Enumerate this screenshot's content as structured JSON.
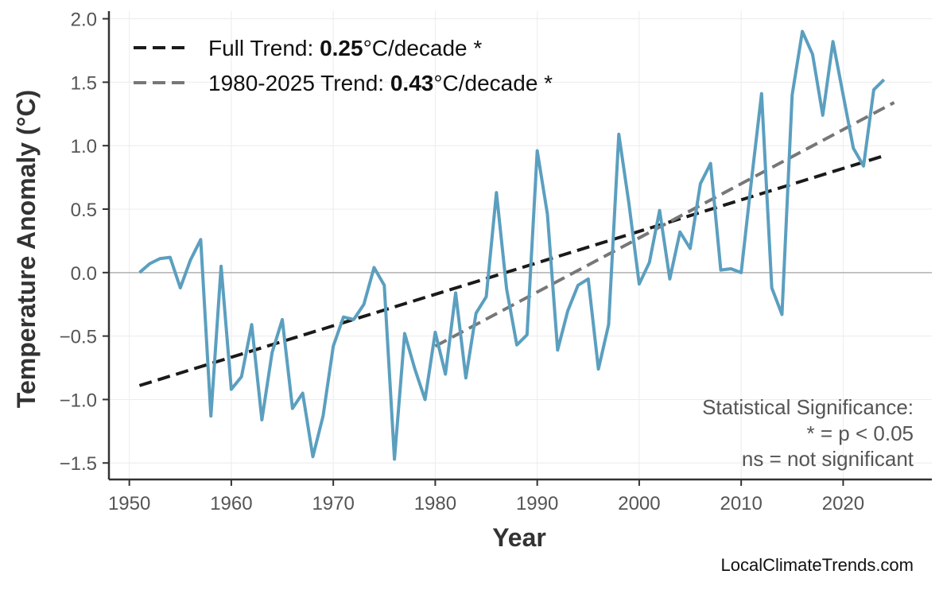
{
  "chart_data": {
    "type": "line",
    "xlabel": "Year",
    "ylabel": "Temperature Anomaly (°C)",
    "xlim": [
      1948,
      2028.7
    ],
    "ylim": [
      -1.63,
      2.06
    ],
    "xticks": [
      1950,
      1960,
      1970,
      1980,
      1990,
      2000,
      2010,
      2020
    ],
    "yticks": [
      -1.5,
      -1.0,
      -0.5,
      0.0,
      0.5,
      1.0,
      1.5,
      2.0
    ],
    "ytick_labels": [
      "−1.5",
      "−1.0",
      "−0.5",
      "0.0",
      "0.5",
      "1.0",
      "1.5",
      "2.0"
    ],
    "grid": true,
    "zero_line": true,
    "legend_position": "top-left",
    "colors": {
      "series": "#5b9fbf",
      "full_trend": "#1a1a1a",
      "recent_trend": "#777777",
      "zero_line": "#b0b0b0"
    },
    "x": [
      1951,
      1952,
      1953,
      1954,
      1955,
      1956,
      1957,
      1958,
      1959,
      1960,
      1961,
      1962,
      1963,
      1964,
      1965,
      1966,
      1967,
      1968,
      1969,
      1970,
      1971,
      1972,
      1973,
      1974,
      1975,
      1976,
      1977,
      1978,
      1979,
      1980,
      1981,
      1982,
      1983,
      1984,
      1985,
      1986,
      1987,
      1988,
      1989,
      1990,
      1991,
      1992,
      1993,
      1994,
      1995,
      1996,
      1997,
      1998,
      1999,
      2000,
      2001,
      2002,
      2003,
      2004,
      2005,
      2006,
      2007,
      2008,
      2009,
      2010,
      2011,
      2012,
      2013,
      2014,
      2015,
      2016,
      2017,
      2018,
      2019,
      2020,
      2021,
      2022,
      2023,
      2024
    ],
    "values": [
      0.0,
      0.07,
      0.11,
      0.12,
      -0.12,
      0.1,
      0.26,
      -1.13,
      0.05,
      -0.92,
      -0.82,
      -0.41,
      -1.16,
      -0.63,
      -0.37,
      -1.07,
      -0.95,
      -1.45,
      -1.13,
      -0.58,
      -0.35,
      -0.37,
      -0.25,
      0.04,
      -0.1,
      -1.47,
      -0.48,
      -0.76,
      -1.0,
      -0.47,
      -0.8,
      -0.16,
      -0.83,
      -0.32,
      -0.19,
      0.63,
      -0.13,
      -0.57,
      -0.49,
      0.96,
      0.46,
      -0.61,
      -0.3,
      -0.1,
      -0.05,
      -0.76,
      -0.41,
      1.09,
      0.54,
      -0.09,
      0.08,
      0.49,
      -0.05,
      0.32,
      0.19,
      0.7,
      0.86,
      0.02,
      0.03,
      0.0,
      0.72,
      1.41,
      -0.12,
      -0.33,
      1.4,
      1.9,
      1.72,
      1.24,
      1.82,
      1.4,
      0.98,
      0.84,
      1.44,
      1.52
    ],
    "trends": [
      {
        "name_prefix": "Full Trend: ",
        "rate": "0.25",
        "name_suffix": "°C/decade *",
        "x": [
          1951,
          2024
        ],
        "y": [
          -0.89,
          0.92
        ]
      },
      {
        "name_prefix": "1980-2025 Trend: ",
        "rate": "0.43",
        "name_suffix": "°C/decade *",
        "x": [
          1980,
          2025
        ],
        "y": [
          -0.58,
          1.34
        ]
      }
    ],
    "annotation": [
      "Statistical Significance:",
      "* = p < 0.05",
      "ns = not significant"
    ],
    "credit": "LocalClimateTrends.com"
  }
}
